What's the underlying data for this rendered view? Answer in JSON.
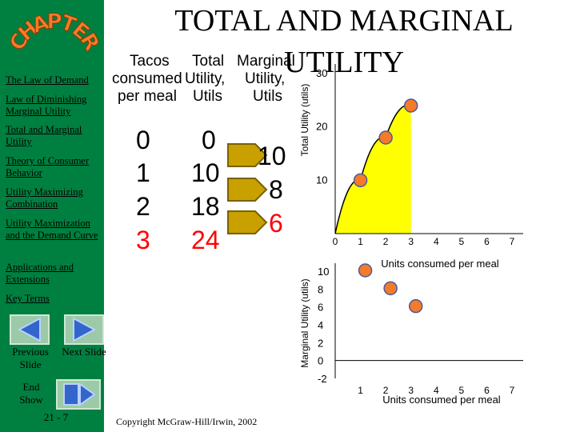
{
  "title": "TOTAL AND MARGINAL UTILITY",
  "logo": {
    "text": "CHAPTER",
    "letters": [
      "C",
      "H",
      "A",
      "P",
      "T",
      "E",
      "R"
    ]
  },
  "sidebar": {
    "links": [
      "The Law of Demand",
      "Law of Diminishing Marginal Utility",
      "Total and Marginal Utility",
      "Theory of Consumer Behavior",
      "Utility Maximizing Combination",
      "Utility Maximization and the Demand Curve",
      "Applications and Extensions",
      "Key Terms"
    ],
    "previous_label": "Previous Slide",
    "next_label": "Next Slide",
    "end_label": "End Show",
    "slide_number": "21 - 7"
  },
  "table": {
    "headers": {
      "col1": [
        "Tacos",
        "consumed",
        "per meal"
      ],
      "col2": [
        "Total",
        "Utility,",
        "Utils"
      ],
      "col3": [
        "Marginal",
        "Utility,",
        "Utils"
      ]
    },
    "tacos": [
      "0",
      "1",
      "2",
      "3"
    ],
    "total": [
      "0",
      "10",
      "18",
      "24"
    ],
    "marginal": [
      "10",
      "8",
      "6"
    ]
  },
  "colors": {
    "sidebar": "#008040",
    "highlight": "#ff0000",
    "fill": "#ffff00",
    "point": "#f57b2a"
  },
  "copyright": "Copyright McGraw-Hill/Irwin, 2002",
  "chart_data": [
    {
      "type": "line",
      "ylabel": "Total Utility (utils)",
      "xlabel": "Units consumed per meal",
      "x_ticks": [
        "0",
        "1",
        "2",
        "3",
        "4",
        "5",
        "6",
        "7"
      ],
      "y_ticks": [
        "10",
        "20",
        "30"
      ],
      "xlim": [
        0,
        7
      ],
      "ylim": [
        0,
        30
      ],
      "points": [
        {
          "x": 0,
          "y": 0
        },
        {
          "x": 1,
          "y": 10
        },
        {
          "x": 2,
          "y": 18
        },
        {
          "x": 3,
          "y": 24
        }
      ],
      "area_fill": true
    },
    {
      "type": "scatter",
      "ylabel": "Marginal Utility (utils)",
      "xlabel": "Units consumed per meal",
      "x_ticks": [
        "1",
        "2",
        "3",
        "4",
        "5",
        "6",
        "7"
      ],
      "y_ticks": [
        "10",
        "8",
        "6",
        "4",
        "2",
        "0",
        "-2"
      ],
      "xlim": [
        0,
        7
      ],
      "ylim": [
        -2,
        10
      ],
      "points": [
        {
          "x": 1,
          "y": 10
        },
        {
          "x": 2,
          "y": 8
        },
        {
          "x": 3,
          "y": 6
        }
      ]
    }
  ]
}
